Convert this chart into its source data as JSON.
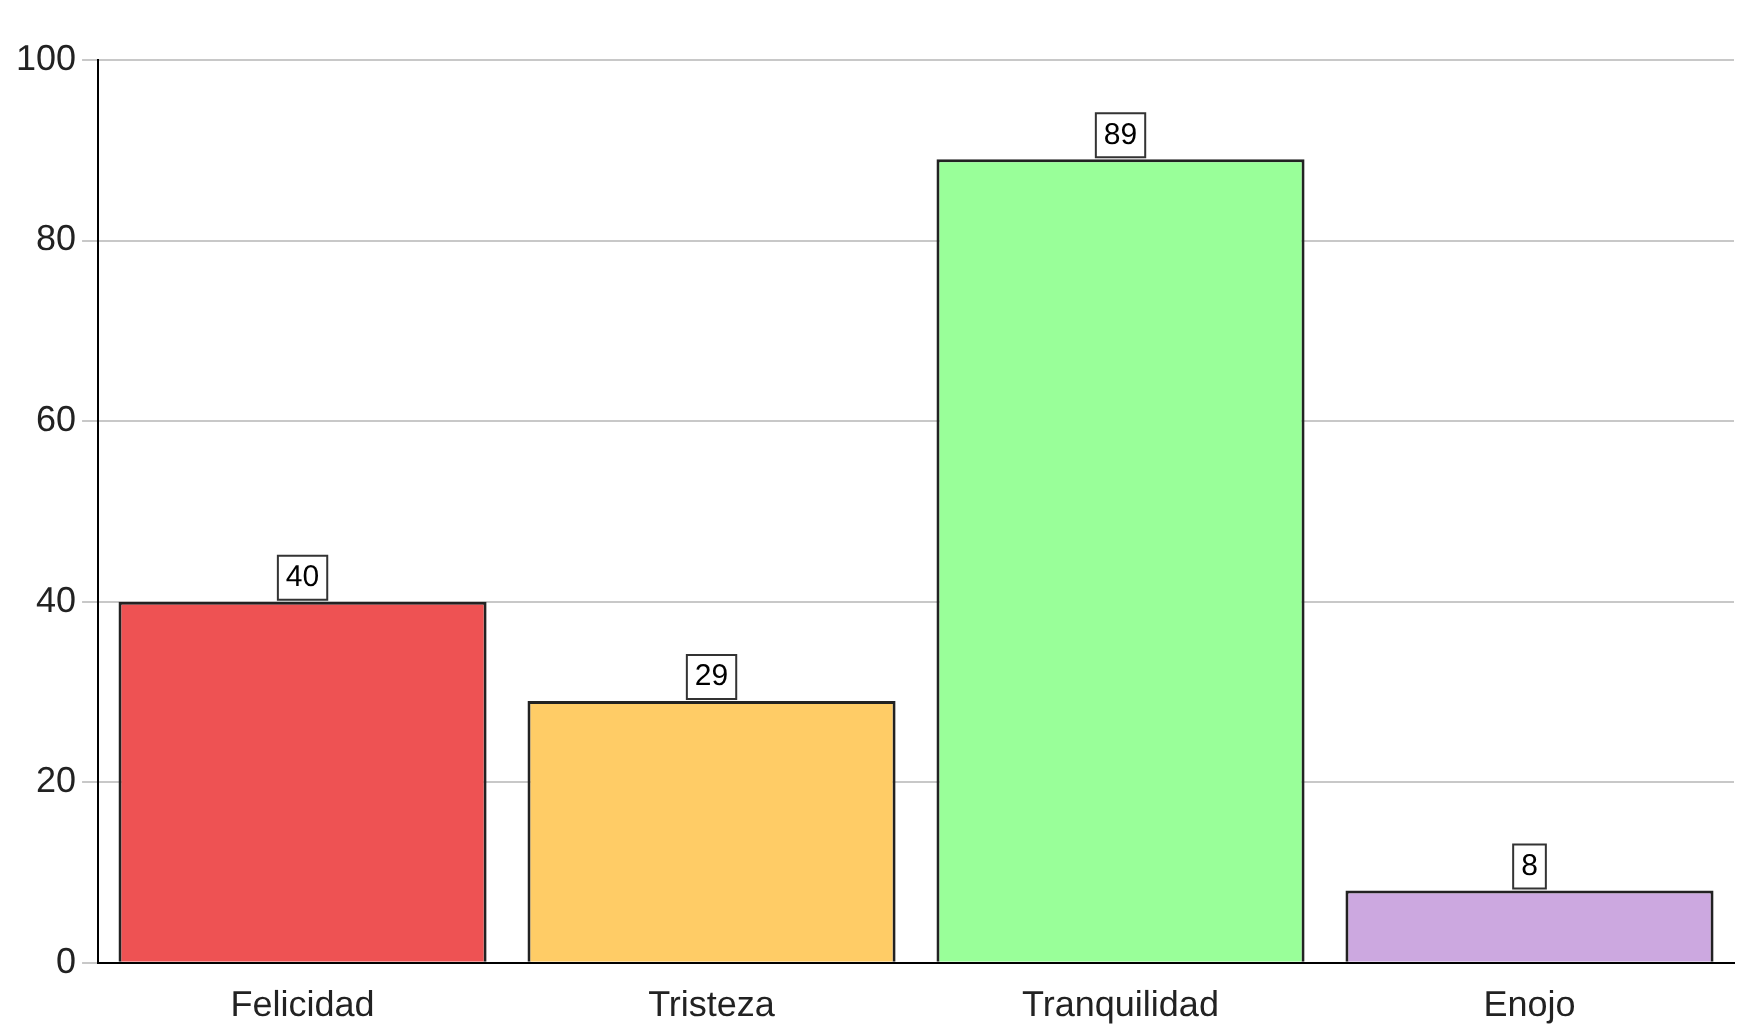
{
  "chart_data": {
    "type": "bar",
    "categories": [
      "Felicidad",
      "Tristeza",
      "Tranquilidad",
      "Enojo"
    ],
    "values": [
      40,
      29,
      89,
      8
    ],
    "colors": [
      "#ee5253",
      "#ffcc66",
      "#99ff99",
      "#cca8e0"
    ],
    "ylim": [
      0,
      100
    ],
    "yticks": [
      0,
      20,
      40,
      60,
      80,
      100
    ],
    "grid": "y",
    "data_labels": true,
    "legend": false
  }
}
